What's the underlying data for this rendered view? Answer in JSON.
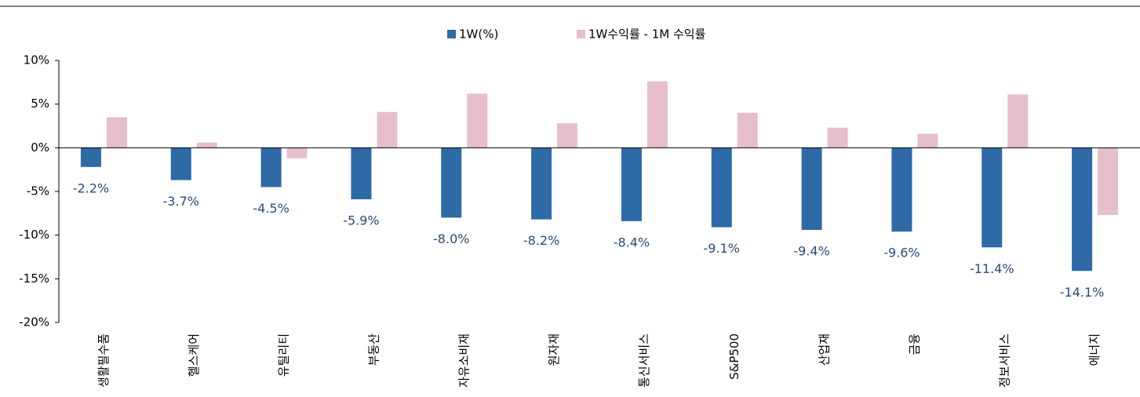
{
  "chart_data": {
    "type": "bar",
    "categories": [
      "생활필수품",
      "헬스케어",
      "유틸리티",
      "부동산",
      "자유소비재",
      "원자재",
      "통신서비스",
      "S&P500",
      "산업재",
      "금융",
      "정보서비스",
      "에너지"
    ],
    "series": [
      {
        "name": "1W(%)",
        "color": "#2e6aa6",
        "values": [
          -2.2,
          -3.7,
          -4.5,
          -5.9,
          -8.0,
          -8.2,
          -8.4,
          -9.1,
          -9.4,
          -9.6,
          -11.4,
          -14.1
        ],
        "value_labels": [
          "-2.2%",
          "-3.7%",
          "-4.5%",
          "-5.9%",
          "-8.0%",
          "-8.2%",
          "-8.4%",
          "-9.1%",
          "-9.4%",
          "-9.6%",
          "-11.4%",
          "-14.1%"
        ]
      },
      {
        "name": "1W수익률 - 1M 수익률",
        "color": "#e6bfcb",
        "values": [
          3.5,
          0.6,
          -1.2,
          4.1,
          6.2,
          2.8,
          7.6,
          4.0,
          2.3,
          1.6,
          6.1,
          -7.7
        ]
      }
    ],
    "ylim": [
      -20,
      10
    ],
    "yticks": [
      {
        "value": -20,
        "label": "-20%"
      },
      {
        "value": -15,
        "label": "-15%"
      },
      {
        "value": -10,
        "label": "-10%"
      },
      {
        "value": -5,
        "label": "-5%"
      },
      {
        "value": 0,
        "label": "0%"
      },
      {
        "value": 5,
        "label": "5%"
      },
      {
        "value": 10,
        "label": "10%"
      }
    ]
  }
}
